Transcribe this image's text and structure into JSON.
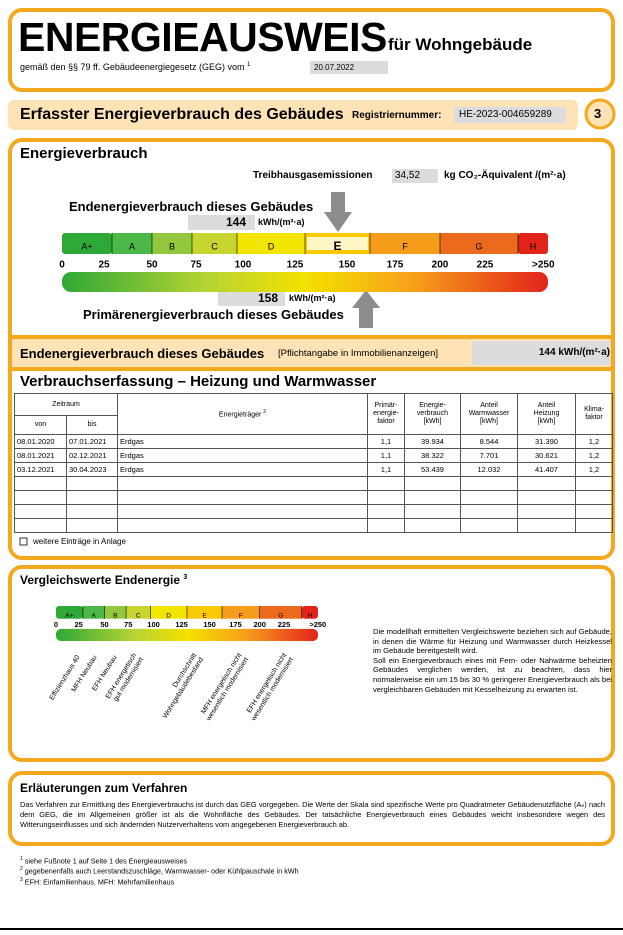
{
  "header": {
    "title": "ENERGIEAUSWEIS",
    "subtitle": "für Wohngebäude",
    "law": "gemäß den §§ 79 ff. Gebäudeenergiegesetz (GEG) vom",
    "law_footnote": "1",
    "date": "20.07.2022"
  },
  "section_bar": {
    "title": "Erfasster Energieverbrauch des Gebäudes",
    "reg_label": "Registriernummer:",
    "reg_number": "HE-2023-004659289",
    "page": "3"
  },
  "energieverbrauch": {
    "heading": "Energieverbrauch",
    "ghg_label": "Treibhausgasemissionen",
    "ghg_value": "34,52",
    "ghg_unit": "kg CO₂-Äquivalent /(m²·a)",
    "end_label": "Endenergieverbrauch dieses Gebäudes",
    "end_value": "144",
    "end_unit": "kWh/(m²·a)",
    "primary_value": "158",
    "primary_unit": "kWh/(m²·a)",
    "primary_label": "Primärenergieverbrauch dieses Gebäudes",
    "classes": [
      "A+",
      "A",
      "B",
      "C",
      "D",
      "E",
      "F",
      "G",
      "H"
    ],
    "scale_labels": [
      "0",
      "25",
      "50",
      "75",
      "100",
      "125",
      "150",
      "175",
      "200",
      "225",
      ">250"
    ]
  },
  "summary": {
    "label": "Endenergieverbrauch dieses Gebäudes",
    "note": "[Pflichtangabe in Immobilienanzeigen]",
    "value": "144 kWh/(m²·a)"
  },
  "verbrauch": {
    "heading": "Verbrauchserfassung – Heizung und Warmwasser",
    "headers": {
      "zeitraum": "Zeitraum",
      "von": "von",
      "bis": "bis",
      "traeger": "Energieträger",
      "traeger_footnote": "2",
      "faktor": [
        "Primär-",
        "energie-",
        "faktor"
      ],
      "verbrauch": [
        "Energie-",
        "verbrauch",
        "[kWh]"
      ],
      "warmwasser": [
        "Anteil",
        "Warmwasser",
        "[kWh]"
      ],
      "heizung": [
        "Anteil",
        "Heizung",
        "[kWh]"
      ],
      "klima": [
        "Klima-",
        "faktor"
      ]
    },
    "rows": [
      [
        "08.01.2020",
        "07.01.2021",
        "Erdgas",
        "1,1",
        "39.934",
        "8.544",
        "31.390",
        "1,2"
      ],
      [
        "08.01.2021",
        "02.12.2021",
        "Erdgas",
        "1,1",
        "38.322",
        "7.701",
        "30.621",
        "1,2"
      ],
      [
        "03.12.2021",
        "30.04.2023",
        "Erdgas",
        "1,1",
        "53.439",
        "12.032",
        "41.407",
        "1,2"
      ]
    ],
    "more": "weitere Einträge in Anlage"
  },
  "vergleich": {
    "heading": "Vergleichswerte Endenergie",
    "footnote": "3",
    "labels": [
      [
        "Effizienzhaus 40"
      ],
      [
        "MFH Neubau"
      ],
      [
        "EFH Neubau"
      ],
      [
        "EFH energetisch",
        "gut modernisiert"
      ],
      [
        "Durchschnitt",
        "Wohngebäudebestand"
      ],
      [
        "MFH energetisch nicht",
        "wesentlich modernisiert"
      ],
      [
        "EFH energetisch nicht",
        "wesentlich modernisiert"
      ]
    ],
    "text": "Die modellhaft ermittelten Vergleichswerte beziehen sich auf Gebäude, in denen die Wärme für Heizung und Warmwasser durch Heizkessel im Gebäude bereitgestellt wird.",
    "text2": "Soll ein Energieverbrauch eines mit Fern- oder Nahwärme beheizten Gebäudes verglichen werden, ist zu beachten, dass hier normalerweise ein um 15 bis 30 % geringerer Energieverbrauch als bei vergleichbaren Gebäuden mit Kesselheizung zu erwarten ist."
  },
  "erlaeuterungen": {
    "heading": "Erläuterungen zum Verfahren",
    "text": "Das Verfahren zur Ermittlung des Energieverbrauchs ist durch das GEG vorgegeben. Die Werte der Skala sind spezifische Werte pro Quadratmeter Gebäudenutzfläche (Aₙ) nach dem GEG, die im Allgemeinen größer ist als die Wohnfläche des Gebäudes. Der tatsächliche Energieverbrauch eines Gebäudes weicht insbesondere wegen des Witterungseinflusses und sich ändernden Nutzerverhaltens vom angegebenen Energieverbrauch ab."
  },
  "footnotes": [
    {
      "mark": "1",
      "text": "siehe Fußnote 1 auf Seite 1 des Energieausweises"
    },
    {
      "mark": "2",
      "text": "gegebenenfalls auch Leerstandszuschläge, Warmwasser- oder Kühlpauschale in kWh"
    },
    {
      "mark": "3",
      "text": "EFH: Einfamilienhaus, MFH: Mehrfamilienhaus"
    }
  ]
}
